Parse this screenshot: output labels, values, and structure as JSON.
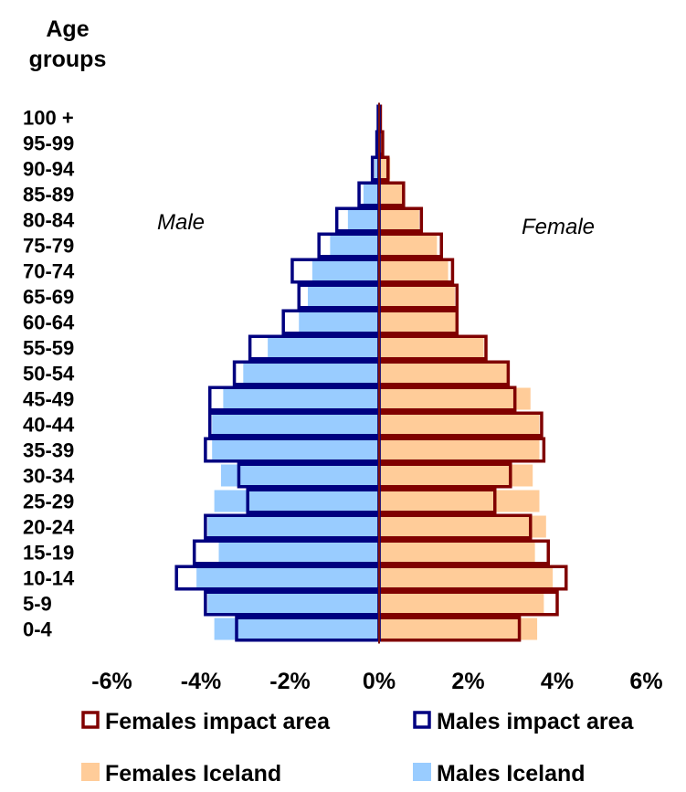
{
  "chart_data": {
    "type": "bar",
    "subtype": "population-pyramid",
    "y_axis_title": [
      "Age",
      "groups"
    ],
    "categories": [
      "0-4",
      "5-9",
      "10-14",
      "15-19",
      "20-24",
      "25-29",
      "30-34",
      "35-39",
      "40-44",
      "45-49",
      "50-54",
      "55-59",
      "60-64",
      "65-69",
      "70-74",
      "75-79",
      "80-84",
      "85-89",
      "90-94",
      "95-99",
      "100 +"
    ],
    "x_ticks": [
      "-6%",
      "-4%",
      "-2%",
      "0%",
      "2%",
      "4%",
      "6%"
    ],
    "x_tick_values": [
      -6,
      -4,
      -2,
      0,
      2,
      4,
      6
    ],
    "xlim": [
      -6,
      6
    ],
    "side_labels": {
      "left": "Male",
      "right": "Female"
    },
    "series": [
      {
        "name": "Females Iceland",
        "side": "female",
        "style": "filled",
        "color": "#FFCC99",
        "values": [
          3.55,
          3.7,
          3.9,
          3.5,
          3.75,
          3.6,
          3.45,
          3.6,
          3.6,
          3.4,
          2.9,
          2.35,
          1.75,
          1.7,
          1.55,
          1.3,
          0.9,
          0.55,
          0.25,
          0.07,
          0.02
        ]
      },
      {
        "name": "Males Iceland",
        "side": "male",
        "style": "filled",
        "color": "#99CCFF",
        "values": [
          3.7,
          3.85,
          4.1,
          3.6,
          3.85,
          3.7,
          3.55,
          3.75,
          3.75,
          3.5,
          3.05,
          2.5,
          1.8,
          1.6,
          1.5,
          1.1,
          0.7,
          0.35,
          0.1,
          0.02,
          0.01
        ]
      },
      {
        "name": "Females impact area",
        "side": "female",
        "style": "outline",
        "color": "#800000",
        "values": [
          3.15,
          4.0,
          4.2,
          3.8,
          3.4,
          2.6,
          2.95,
          3.7,
          3.65,
          3.05,
          2.9,
          2.4,
          1.75,
          1.75,
          1.65,
          1.4,
          0.95,
          0.55,
          0.2,
          0.08,
          0.03
        ]
      },
      {
        "name": "Males impact area",
        "side": "male",
        "style": "outline",
        "color": "#000080",
        "values": [
          3.2,
          3.9,
          4.55,
          4.15,
          3.9,
          2.95,
          3.15,
          3.9,
          3.8,
          3.8,
          3.25,
          2.9,
          2.15,
          1.8,
          1.95,
          1.35,
          0.95,
          0.45,
          0.15,
          0.05,
          0.02
        ]
      }
    ],
    "grid": false,
    "legend_placement": "bottom"
  }
}
